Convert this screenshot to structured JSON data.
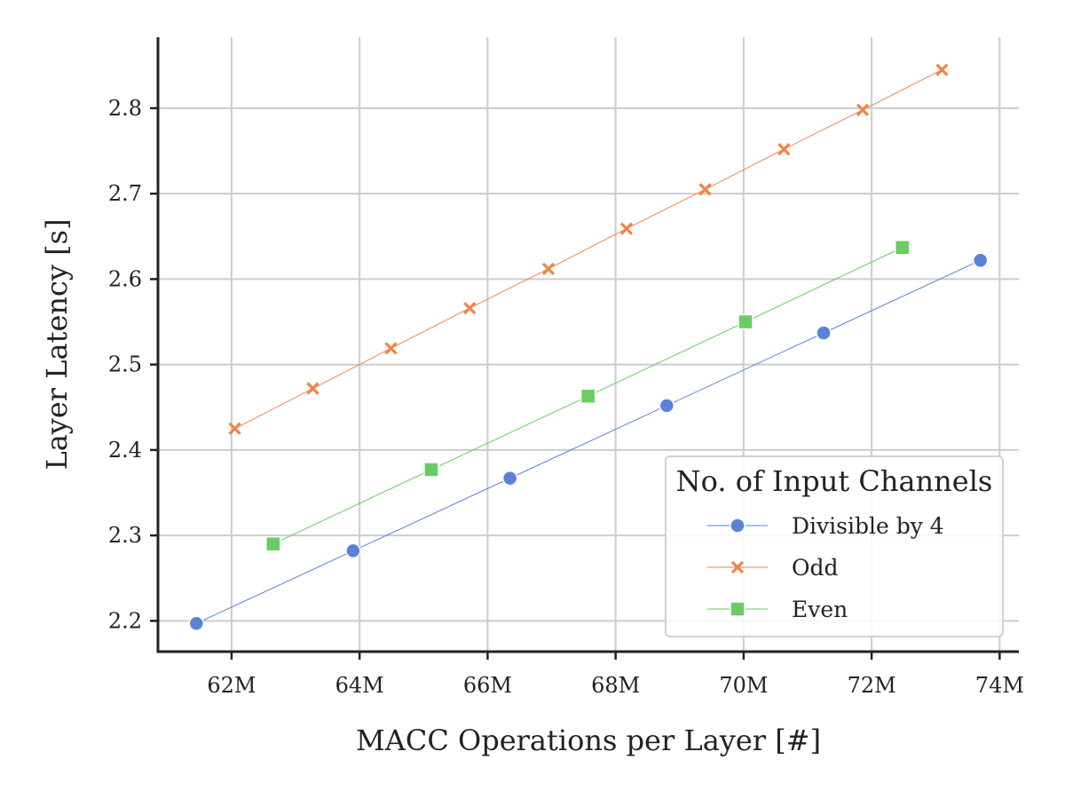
{
  "chart_data": {
    "type": "line",
    "title": "",
    "xlabel": "MACC Operations per Layer [#]",
    "ylabel": "Layer Latency [s]",
    "xlim": [
      60.85,
      74.3
    ],
    "ylim": [
      2.164,
      2.883
    ],
    "xticks": [
      62,
      64,
      66,
      68,
      70,
      72,
      74
    ],
    "xtick_labels": [
      "62M",
      "64M",
      "66M",
      "68M",
      "70M",
      "72M",
      "74M"
    ],
    "yticks": [
      2.2,
      2.3,
      2.4,
      2.5,
      2.6,
      2.7,
      2.8
    ],
    "ytick_labels": [
      "2.2",
      "2.3",
      "2.4",
      "2.5",
      "2.6",
      "2.7",
      "2.8"
    ],
    "grid": true,
    "legend": {
      "title": "No. of Input Channels",
      "placement": "lower-right"
    },
    "series": [
      {
        "name": "Divisible by 4",
        "color": "#5a82d6",
        "marker": "circle",
        "points": [
          {
            "x": 61.45,
            "y": 2.197
          },
          {
            "x": 63.9,
            "y": 2.282
          },
          {
            "x": 66.35,
            "y": 2.367
          },
          {
            "x": 68.8,
            "y": 2.452
          },
          {
            "x": 71.25,
            "y": 2.537
          },
          {
            "x": 73.7,
            "y": 2.622
          }
        ]
      },
      {
        "name": "Odd",
        "color": "#ee854a",
        "marker": "x",
        "points": [
          {
            "x": 62.05,
            "y": 2.425
          },
          {
            "x": 63.27,
            "y": 2.472
          },
          {
            "x": 64.49,
            "y": 2.519
          },
          {
            "x": 65.72,
            "y": 2.566
          },
          {
            "x": 66.95,
            "y": 2.612
          },
          {
            "x": 68.17,
            "y": 2.659
          },
          {
            "x": 69.4,
            "y": 2.705
          },
          {
            "x": 70.63,
            "y": 2.752
          },
          {
            "x": 71.86,
            "y": 2.798
          },
          {
            "x": 73.1,
            "y": 2.845
          }
        ]
      },
      {
        "name": "Even",
        "color": "#6acc64",
        "marker": "square",
        "points": [
          {
            "x": 62.65,
            "y": 2.29
          },
          {
            "x": 65.12,
            "y": 2.377
          },
          {
            "x": 67.57,
            "y": 2.463
          },
          {
            "x": 70.03,
            "y": 2.55
          },
          {
            "x": 72.48,
            "y": 2.637
          }
        ]
      }
    ]
  }
}
